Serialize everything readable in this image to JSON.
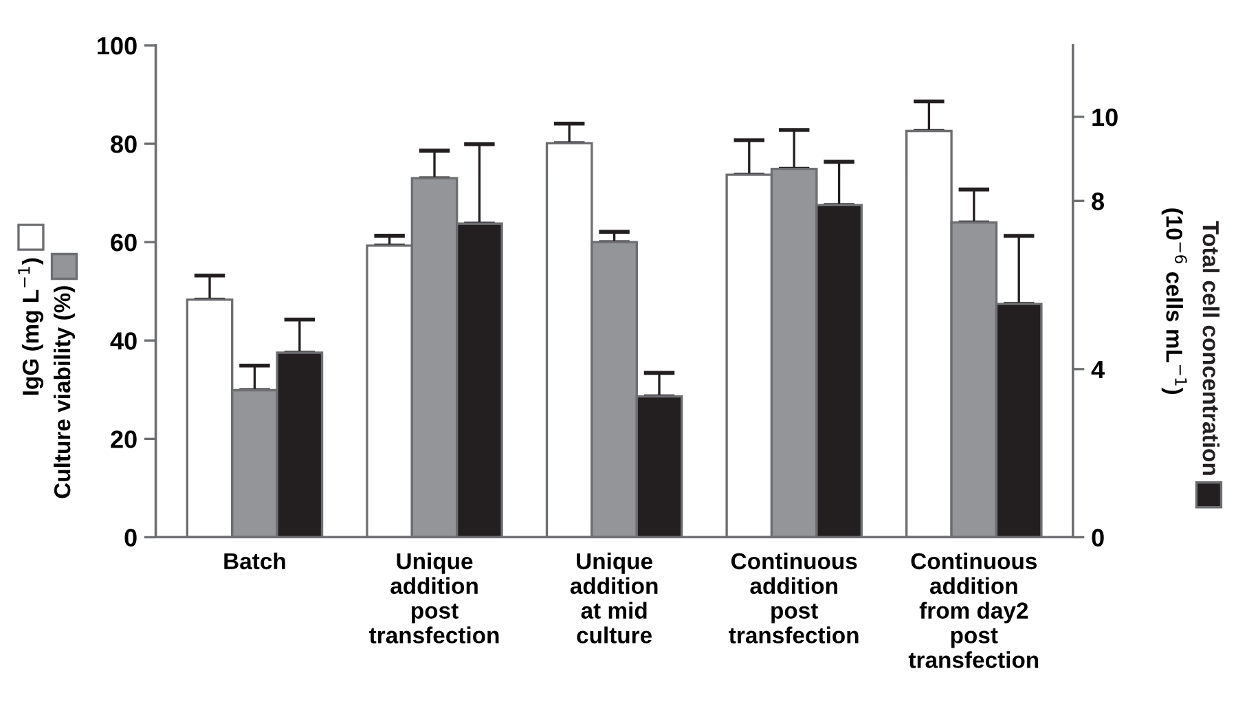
{
  "chart_data": {
    "type": "bar",
    "categories": [
      "Batch",
      "Unique\naddition\npost\ntransfection",
      "Unique\naddition\nat mid\nculture",
      "Continuous\naddition\npost\ntransfection",
      "Continuous\naddition\nfrom day2\npost\ntransfection"
    ],
    "series": [
      {
        "name": "IgG (mg L$^{−1}$)",
        "color": "#ffffff",
        "values": [
          48.3,
          59.3,
          80.1,
          73.7,
          82.6
        ],
        "errors": [
          [
            48.3,
            53.2
          ],
          [
            59.3,
            61.3
          ],
          [
            80.1,
            84.1
          ],
          [
            73.7,
            80.7
          ],
          [
            82.6,
            88.6
          ]
        ]
      },
      {
        "name": "Culture viability (%)",
        "color": "#939598",
        "values": [
          29.9,
          73.0,
          60.0,
          74.9,
          64.0
        ],
        "errors": [
          [
            29.9,
            34.9
          ],
          [
            73.0,
            78.6
          ],
          [
            60.0,
            62.1
          ],
          [
            74.9,
            82.8
          ],
          [
            64.0,
            70.7
          ]
        ]
      },
      {
        "name": "Total cell concentration",
        "color": "#231f20",
        "axis": "y2",
        "values": [
          4.39,
          7.46,
          3.35,
          7.9,
          5.55
        ],
        "errors": [
          [
            4.39,
            5.18
          ],
          [
            7.46,
            9.35
          ],
          [
            3.35,
            3.91
          ],
          [
            7.9,
            8.93
          ],
          [
            5.55,
            7.17
          ]
        ]
      }
    ],
    "y2label": "(10$^{−6}$ cells mL$^{−1}$)",
    "ylim": [
      0,
      100
    ],
    "yticks": [
      0,
      20,
      40,
      60,
      80,
      100
    ],
    "y2lim": [
      0,
      11.7
    ],
    "y2ticks": [
      0,
      4,
      8,
      10
    ],
    "grid": false,
    "legend": "left"
  }
}
